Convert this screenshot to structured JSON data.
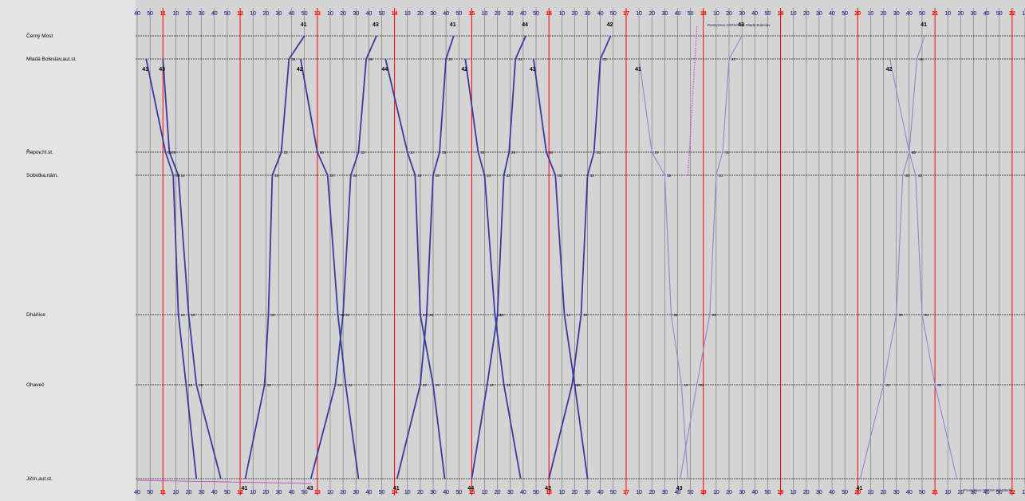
{
  "stops": [
    {
      "name": "Černý Most"
    },
    {
      "name": "Mladá Boleslav,aut.st."
    },
    {
      "name": "Řepov,hl.st."
    },
    {
      "name": "Sobotka,nám."
    },
    {
      "name": "Dháňice"
    },
    {
      "name": "Ohaveč"
    },
    {
      "name": "Jičín,aut.st."
    }
  ],
  "timeline": {
    "start_minute": 640,
    "end_minute": 1330,
    "tick_step": 10,
    "hour_labels": [
      "11",
      "12",
      "13",
      "14",
      "15",
      "16",
      "17",
      "18",
      "19",
      "20",
      "21",
      "22"
    ]
  },
  "colors": {
    "background": "#d4d4d4",
    "sidebar": "#e4e4e4",
    "grid_minor": "#707070",
    "grid_hour": "#ff0000",
    "stop_line": "#202020",
    "trip_main": "#3a3aa0",
    "trip_light": "#8888cc",
    "trip_dotted": "#cc44cc"
  },
  "trips": [
    {
      "label": "41",
      "dir": "down",
      "times": [
        null,
        647,
        662,
        668,
        672,
        678,
        686
      ]
    },
    {
      "label": "43",
      "dir": "down",
      "times": [
        null,
        660,
        665,
        672,
        680,
        686,
        705
      ]
    },
    {
      "label": "41",
      "dir": "up",
      "times": [
        770,
        758,
        752,
        745,
        742,
        739,
        724
      ]
    },
    {
      "label": "42",
      "dir": "down",
      "times": [
        null,
        767,
        780,
        788,
        796,
        802,
        812
      ]
    },
    {
      "label": "43",
      "dir": "up",
      "times": [
        826,
        818,
        812,
        806,
        800,
        794,
        775
      ]
    },
    {
      "label": "44",
      "dir": "down",
      "times": [
        null,
        833,
        850,
        856,
        860,
        870,
        879
      ]
    },
    {
      "label": "41",
      "dir": "up",
      "times": [
        886,
        880,
        875,
        870,
        865,
        860,
        842
      ]
    },
    {
      "label": "42",
      "dir": "down",
      "times": [
        null,
        895,
        905,
        910,
        918,
        925,
        938
      ]
    },
    {
      "label": "44",
      "dir": "up",
      "times": [
        942,
        934,
        929,
        925,
        920,
        912,
        900
      ]
    },
    {
      "label": "43",
      "dir": "down",
      "times": [
        null,
        948,
        958,
        965,
        972,
        980,
        990
      ]
    },
    {
      "label": "42",
      "dir": "up",
      "times": [
        1008,
        1000,
        995,
        990,
        985,
        978,
        960
      ]
    },
    {
      "label": "41",
      "dir": "down",
      "times": [
        null,
        1030,
        1040,
        1050,
        1055,
        1063,
        1068
      ]
    },
    {
      "label": "43",
      "dir": "up",
      "times": [
        1110,
        1100,
        1095,
        1090,
        1085,
        1075,
        1062
      ]
    },
    {
      "label": "42",
      "dir": "down",
      "times": [
        null,
        1225,
        1240,
        1245,
        1250,
        1260,
        1277
      ]
    },
    {
      "label": "41",
      "dir": "up",
      "times": [
        1252,
        1246,
        1240,
        1235,
        1230,
        1220,
        1202
      ]
    }
  ],
  "annotations": [
    {
      "text": "Promyznes ARRIVA SČ Mladá Boleslav"
    },
    {
      "text": "Promyznes ARRIVA SČ Mladá"
    }
  ]
}
